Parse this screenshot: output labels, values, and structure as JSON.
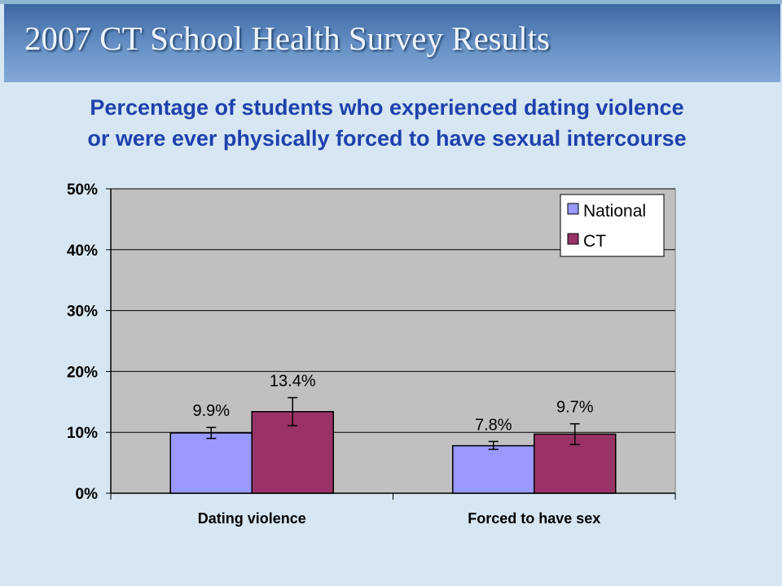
{
  "slide": {
    "title": "2007 CT School Health Survey Results",
    "heading_lines": [
      "Percentage of students who experienced dating violence",
      "or were ever physically forced to have sexual intercourse"
    ]
  },
  "chart_data": {
    "type": "bar",
    "categories": [
      "Dating violence",
      "Forced to have sex"
    ],
    "series": [
      {
        "name": "National",
        "color": "#9999ff",
        "values": [
          9.9,
          7.8
        ],
        "labels": [
          "9.9%",
          "7.8%"
        ],
        "error": [
          [
            9.0,
            10.8
          ],
          [
            7.2,
            8.5
          ]
        ]
      },
      {
        "name": "CT",
        "color": "#993366",
        "values": [
          13.4,
          9.7
        ],
        "labels": [
          "13.4%",
          "9.7%"
        ],
        "error": [
          [
            11.1,
            15.7
          ],
          [
            8.0,
            11.4
          ]
        ]
      }
    ],
    "yticks": [
      "0%",
      "10%",
      "20%",
      "30%",
      "40%",
      "50%"
    ],
    "ylim": [
      0,
      50
    ],
    "grid": true,
    "plot_background": "#c0c0c0",
    "legend_position": "top-right"
  }
}
